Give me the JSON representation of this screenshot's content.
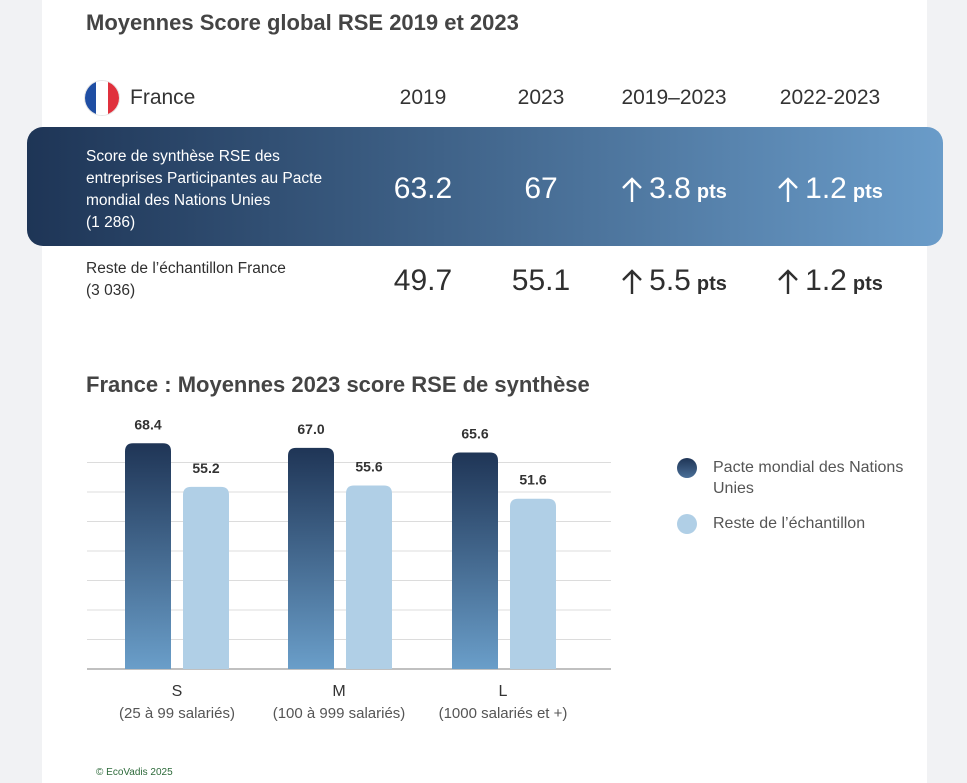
{
  "title": "Moyennes Score global RSE 2019 et 2023",
  "table": {
    "country": "France",
    "columns": [
      "2019",
      "2023",
      "2019–2023",
      "2022-2023"
    ],
    "rows": [
      {
        "label": "Score de synthèse RSE des\nentreprises Participantes au Pacte\nmondial des Nations Unies\n(1 286)",
        "v2019": "63.2",
        "v2023": "67",
        "d1": "3.8",
        "d2": "1.2",
        "unit": "pts"
      },
      {
        "label": "Reste de l’échantillon France\n(3 036)",
        "v2019": "49.7",
        "v2023": "55.1",
        "d1": "5.5",
        "d2": "1.2",
        "unit": "pts"
      }
    ]
  },
  "chart_title": "France : Moyennes 2023 score RSE de synthèse",
  "chart_data": {
    "type": "bar",
    "categories": [
      "S",
      "M",
      "L"
    ],
    "category_sublabels": [
      "(25 à 99 salariés)",
      "(100 à 999 salariés)",
      "(1000 salariés et +)"
    ],
    "series": [
      {
        "name": "Pacte mondial des Nations Unies",
        "values": [
          68.4,
          67.0,
          65.6
        ],
        "labels": [
          "68.4",
          "67.0",
          "65.6"
        ],
        "color": "#1f3a5c"
      },
      {
        "name": "Reste de l’échantillon",
        "values": [
          55.2,
          55.6,
          51.6
        ],
        "labels": [
          "55.2",
          "55.6",
          "51.6"
        ],
        "color": "#b0cfe6"
      }
    ],
    "ylim": [
      0,
      70
    ],
    "grid": true,
    "legend": "right"
  },
  "colors": {
    "band_dark": "#1e3556",
    "band_light": "#6a9cc9",
    "bar_dark": "#1f3a5c",
    "bar_light": "#b0cfe6"
  },
  "footer": "© EcoVadis 2025"
}
